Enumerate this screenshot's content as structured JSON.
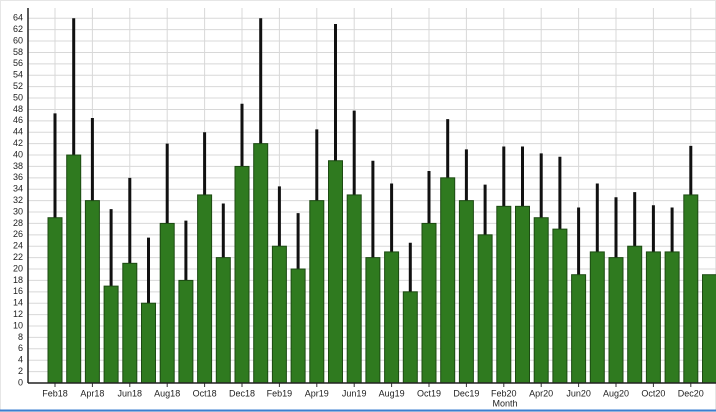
{
  "chart_data": {
    "type": "bar",
    "x_label": "Month",
    "categories": [
      "Feb18",
      null,
      "Apr18",
      null,
      "Jun18",
      null,
      "Aug18",
      null,
      "Oct18",
      null,
      "Dec18",
      null,
      "Feb19",
      null,
      "Apr19",
      null,
      "Jun19",
      null,
      "Aug19",
      null,
      "Oct19",
      null,
      "Dec19",
      null,
      "Feb20",
      null,
      "Apr20",
      null,
      "Jun20",
      null,
      "Aug20",
      null,
      "Oct20",
      null,
      "Dec20",
      null
    ],
    "values": [
      29,
      40,
      32,
      17,
      21,
      14,
      28,
      18,
      33,
      22,
      38,
      42,
      24,
      20,
      32,
      39,
      33,
      22,
      23,
      16,
      28,
      36,
      32,
      26,
      31,
      31,
      29,
      27,
      19,
      23,
      22,
      24,
      23,
      23,
      33,
      19
    ],
    "errors": [
      18.3,
      24,
      14.5,
      13.5,
      15,
      11.5,
      14,
      10.5,
      11,
      9.5,
      11,
      22,
      10.5,
      9.8,
      12.5,
      24,
      14.8,
      17,
      12,
      8.6,
      9.2,
      10.3,
      9,
      8.8,
      10.5,
      10.5,
      11.3,
      12.7,
      11.8,
      12,
      10.6,
      9.5,
      8.2,
      7.8,
      8.6,
      null
    ],
    "color": "#2f7a1f",
    "error_color": "#111111",
    "ylim": [
      0,
      65.8
    ],
    "yticks": [
      0,
      2,
      4,
      6,
      8,
      10,
      12,
      14,
      16,
      18,
      20,
      22,
      24,
      26,
      28,
      30,
      32,
      34,
      36,
      38,
      40,
      42,
      44,
      46,
      48,
      50,
      52,
      54,
      56,
      58,
      60,
      62,
      64
    ],
    "grid": true
  }
}
